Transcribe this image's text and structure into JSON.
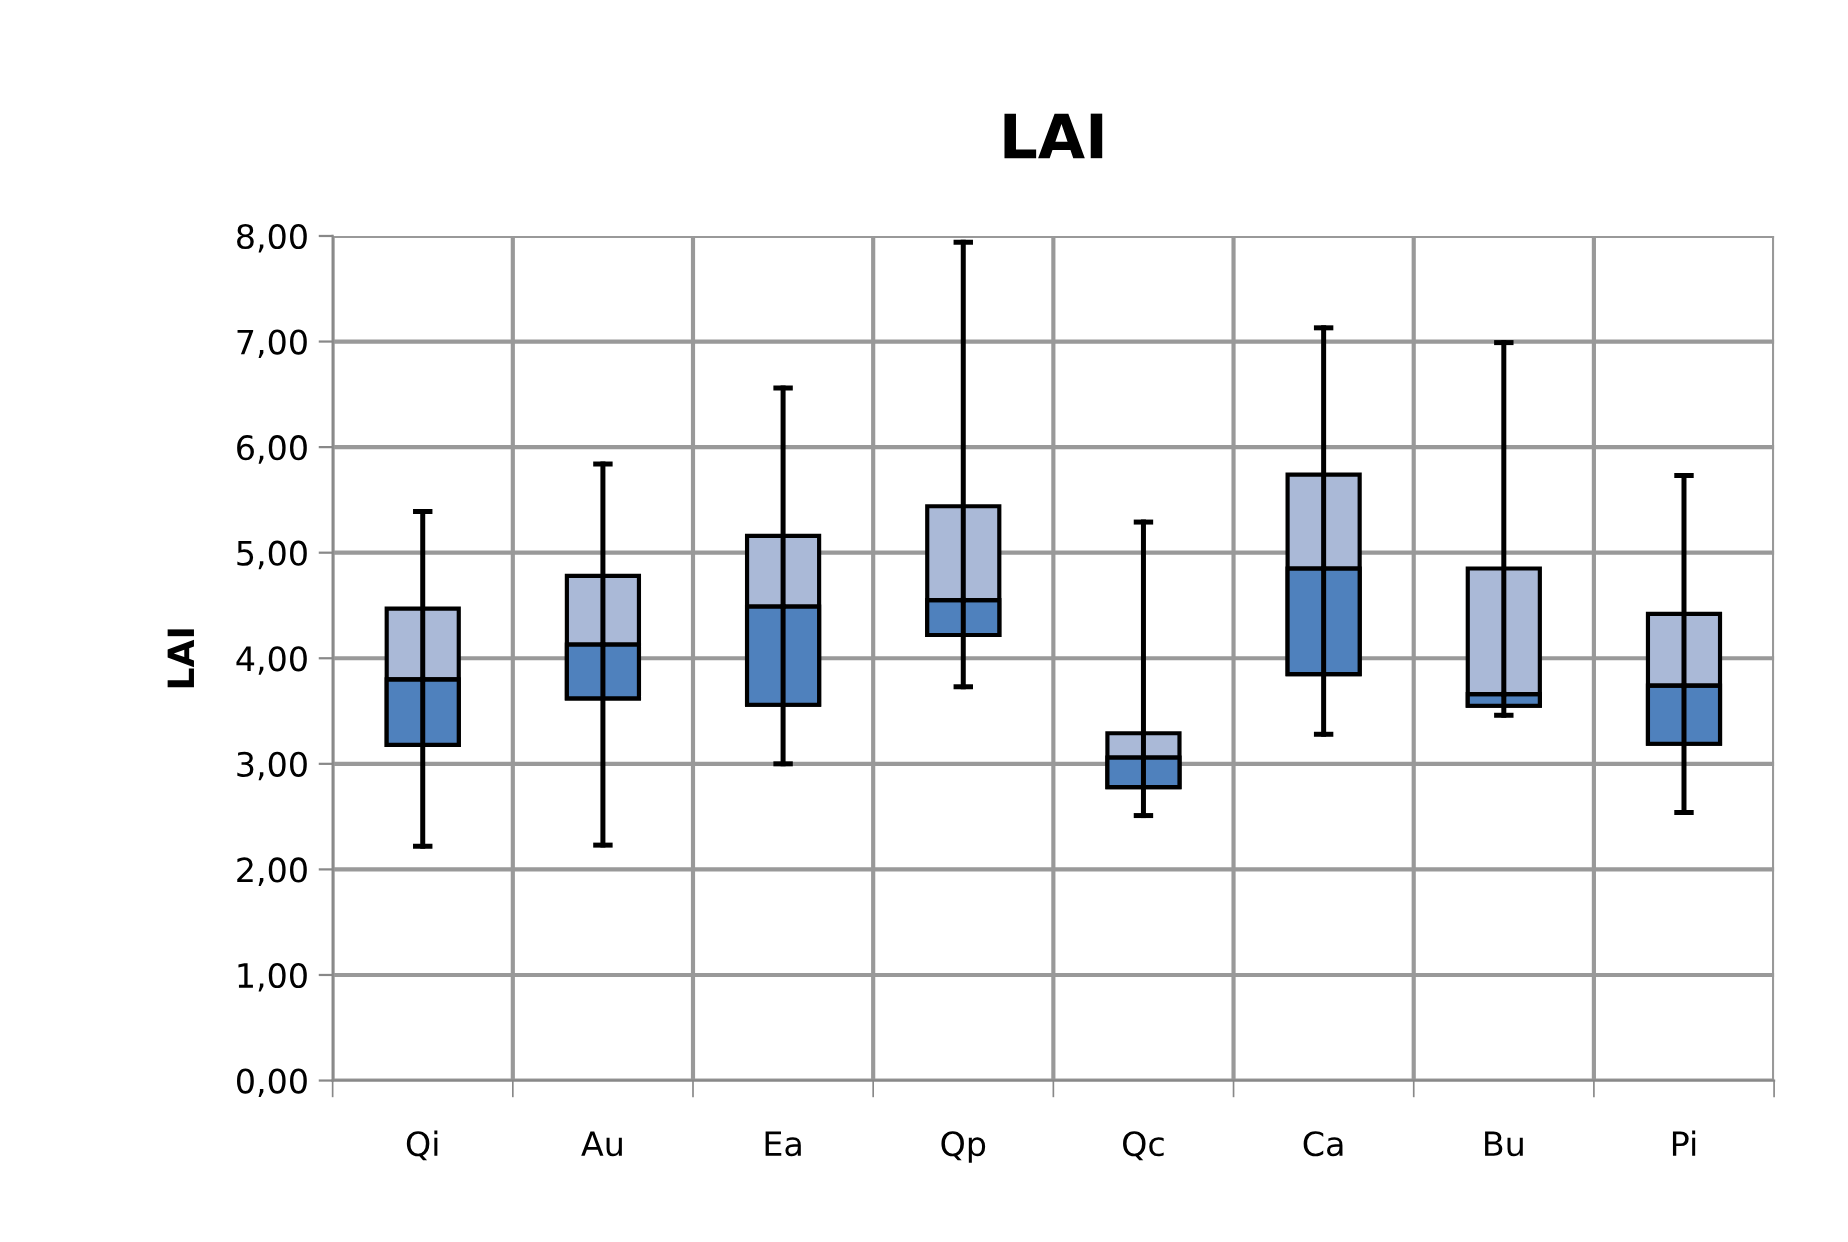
{
  "chart_data": {
    "type": "box",
    "title": "LAI",
    "ylabel": "LAI",
    "categories": [
      "Qi",
      "Au",
      "Ea",
      "Qp",
      "Qc",
      "Ca",
      "Bu",
      "Pi"
    ],
    "colors": [
      "#4f81bd",
      "#4f81bd",
      "#4f81bd",
      "#4f81bd",
      "#4f81bd",
      "#4f81bd",
      "#4f81bd",
      "#4f81bd"
    ],
    "series": [
      {
        "color": "#aab9d7",
        "boxes": [
          {
            "low": 2.22,
            "q1": 3.18,
            "median": 3.8,
            "q3": 4.47,
            "high": 5.39
          },
          {
            "low": 2.23,
            "q1": 3.62,
            "median": 4.13,
            "q3": 4.78,
            "high": 5.84
          },
          {
            "low": 3.0,
            "q1": 3.56,
            "median": 4.49,
            "q3": 5.16,
            "high": 6.56
          },
          {
            "low": 3.73,
            "q1": 4.22,
            "median": 4.55,
            "q3": 5.44,
            "high": 7.94
          },
          {
            "low": 2.51,
            "q1": 2.78,
            "median": 3.06,
            "q3": 3.29,
            "high": 5.29
          },
          {
            "low": 3.28,
            "q1": 3.85,
            "median": 4.85,
            "q3": 5.74,
            "high": 7.13
          },
          {
            "low": 3.46,
            "q1": 3.55,
            "median": 3.66,
            "q3": 4.85,
            "high": 6.99
          },
          {
            "low": 2.54,
            "q1": 3.19,
            "median": 3.74,
            "q3": 4.42,
            "high": 5.73
          }
        ]
      }
    ],
    "ylim": [
      0,
      8
    ],
    "yticks": [
      {
        "value": 0,
        "label": "0,00"
      },
      {
        "value": 1,
        "label": "1,00"
      },
      {
        "value": 2,
        "label": "2,00"
      },
      {
        "value": 3,
        "label": "3,00"
      },
      {
        "value": 4,
        "label": "4,00"
      },
      {
        "value": 5,
        "label": "5,00"
      },
      {
        "value": 6,
        "label": "6,00"
      },
      {
        "value": 7,
        "label": "7,00"
      },
      {
        "value": 8,
        "label": "8,00"
      }
    ],
    "grid": true
  }
}
